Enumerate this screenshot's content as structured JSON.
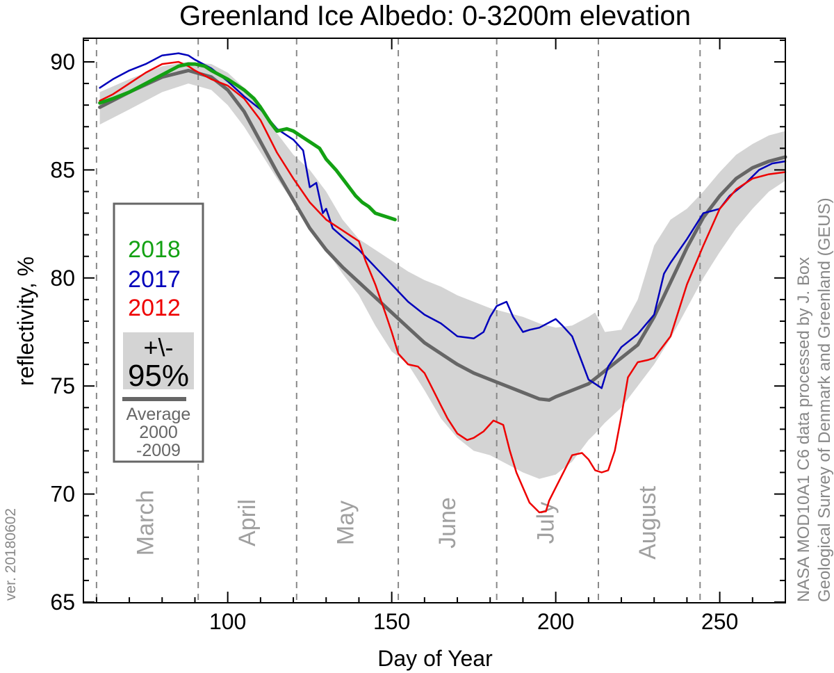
{
  "chart_data": {
    "type": "line",
    "title": "Greenland Ice Albedo: 0-3200m elevation",
    "xlabel": "Day of Year",
    "ylabel": "reflectivity, %",
    "xlim": [
      56,
      270
    ],
    "ylim": [
      65,
      91.5
    ],
    "x_ticks": [
      100,
      150,
      200,
      250
    ],
    "y_ticks": [
      65,
      70,
      75,
      80,
      85,
      90
    ],
    "grid": "vertical dashed month boundaries",
    "month_boundaries": [
      60,
      91,
      121,
      152,
      182,
      213,
      244
    ],
    "months": [
      {
        "label": "March",
        "day": 75
      },
      {
        "label": "April",
        "day": 106
      },
      {
        "label": "May",
        "day": 136
      },
      {
        "label": "June",
        "day": 167
      },
      {
        "label": "July",
        "day": 197
      },
      {
        "label": "August",
        "day": 228
      }
    ],
    "version": "ver. 20180602",
    "credit_lines": [
      "NASA MOD10A1 C6 data processed by J. Box",
      "Geological Survey of Denmark and Greenland (GEUS)"
    ],
    "legend": {
      "placement": "left",
      "entries": [
        {
          "label": "2018",
          "color": "#13a113"
        },
        {
          "label": "2017",
          "color": "#0000bb"
        },
        {
          "label": "2012",
          "color": "#ee0000"
        }
      ],
      "band_label_top": "+\\-",
      "band_label_bottom": "95%",
      "average_label": [
        "Average",
        "2000",
        "-2009"
      ]
    },
    "colors": {
      "series_2018": "#13a113",
      "series_2017": "#0000bb",
      "series_2012": "#ee0000",
      "average": "#666666",
      "band": "#d4d4d4",
      "month_text": "#a0a0a0"
    },
    "band": {
      "name": "+\\- 95%",
      "x": [
        61,
        70,
        80,
        88,
        95,
        100,
        105,
        110,
        115,
        120,
        125,
        130,
        135,
        140,
        145,
        150,
        155,
        160,
        165,
        170,
        175,
        180,
        185,
        190,
        195,
        200,
        205,
        210,
        212,
        215,
        220,
        225,
        230,
        235,
        240,
        245,
        250,
        255,
        260,
        265,
        270
      ],
      "upper": [
        88.6,
        89.2,
        89.8,
        90.0,
        89.9,
        89.5,
        88.8,
        87.8,
        86.7,
        85.7,
        85.0,
        84.0,
        82.7,
        81.8,
        81.3,
        80.8,
        80.3,
        79.9,
        79.6,
        79.2,
        78.9,
        78.6,
        78.4,
        78.2,
        77.9,
        77.7,
        77.8,
        78.2,
        78.4,
        77.5,
        77.6,
        79.0,
        81.5,
        82.7,
        83.2,
        84.0,
        84.9,
        85.7,
        86.2,
        86.6,
        86.8
      ],
      "lower": [
        87.1,
        87.8,
        88.6,
        89.0,
        88.7,
        88.0,
        87.0,
        85.8,
        84.6,
        83.5,
        82.4,
        81.3,
        80.2,
        79.2,
        77.8,
        76.6,
        76.0,
        74.8,
        73.5,
        72.6,
        72.0,
        71.8,
        71.4,
        71.0,
        70.7,
        70.9,
        71.5,
        72.5,
        72.8,
        73.3,
        74.0,
        75.0,
        76.0,
        77.2,
        78.6,
        80.0,
        81.2,
        82.3,
        83.2,
        84.0,
        84.5
      ]
    },
    "series": [
      {
        "name": "Average 2000-2009",
        "color": "#666666",
        "width": 5,
        "x": [
          61,
          70,
          80,
          88,
          95,
          100,
          105,
          110,
          115,
          120,
          125,
          130,
          135,
          140,
          145,
          150,
          155,
          160,
          165,
          170,
          175,
          180,
          185,
          190,
          195,
          198,
          200,
          205,
          210,
          215,
          220,
          225,
          230,
          235,
          240,
          245,
          250,
          255,
          260,
          265,
          270
        ],
        "y": [
          87.9,
          88.6,
          89.3,
          89.6,
          89.3,
          88.7,
          87.7,
          86.3,
          84.9,
          83.6,
          82.3,
          81.3,
          80.5,
          79.8,
          79.1,
          78.4,
          77.7,
          77.0,
          76.5,
          76.0,
          75.6,
          75.3,
          75.0,
          74.7,
          74.4,
          74.35,
          74.5,
          74.8,
          75.1,
          75.7,
          76.3,
          76.9,
          78.2,
          79.8,
          81.4,
          82.8,
          83.8,
          84.6,
          85.1,
          85.4,
          85.6
        ]
      },
      {
        "name": "2017",
        "color": "#0000bb",
        "width": 2.5,
        "x": [
          61,
          65,
          70,
          75,
          80,
          85,
          88,
          90,
          95,
          100,
          105,
          110,
          115,
          118,
          120,
          123,
          125,
          127,
          129,
          130,
          132,
          135,
          140,
          145,
          150,
          155,
          160,
          165,
          170,
          175,
          178,
          180,
          182,
          185,
          187,
          190,
          192,
          195,
          200,
          202,
          205,
          208,
          210,
          212,
          214,
          216,
          220,
          225,
          230,
          233,
          235,
          240,
          245,
          250,
          253,
          258,
          262,
          266,
          270
        ],
        "y": [
          88.8,
          89.2,
          89.6,
          89.9,
          90.3,
          90.4,
          90.3,
          90.1,
          89.7,
          89.1,
          88.4,
          87.8,
          86.9,
          86.6,
          86.4,
          85.9,
          84.2,
          84.4,
          83.0,
          83.2,
          82.3,
          81.9,
          81.3,
          80.5,
          79.7,
          78.9,
          78.3,
          77.9,
          77.3,
          77.2,
          77.5,
          78.2,
          78.7,
          78.9,
          78.2,
          77.5,
          77.6,
          77.7,
          78.1,
          77.8,
          77.3,
          76.1,
          75.3,
          75.1,
          74.9,
          75.9,
          76.8,
          77.4,
          78.3,
          80.2,
          80.7,
          81.8,
          83.0,
          83.2,
          83.8,
          84.4,
          85.0,
          85.3,
          85.4
        ]
      },
      {
        "name": "2012",
        "color": "#ee0000",
        "width": 2.5,
        "x": [
          61,
          65,
          70,
          75,
          80,
          85,
          88,
          90,
          95,
          100,
          105,
          110,
          115,
          120,
          125,
          130,
          135,
          140,
          142,
          145,
          148,
          150,
          152,
          155,
          158,
          160,
          162,
          165,
          167,
          170,
          173,
          175,
          178,
          181,
          184,
          186,
          188,
          190,
          192,
          195,
          197,
          198,
          200,
          203,
          205,
          208,
          210,
          212,
          214,
          216,
          218,
          220,
          222,
          225,
          228,
          230,
          235,
          240,
          245,
          250,
          255,
          260,
          265,
          270
        ],
        "y": [
          88.2,
          88.5,
          89.0,
          89.5,
          89.9,
          90.0,
          89.8,
          89.6,
          89.2,
          88.9,
          88.3,
          87.3,
          85.8,
          84.6,
          83.5,
          82.7,
          82.2,
          81.7,
          80.8,
          79.7,
          78.4,
          77.5,
          76.5,
          76.0,
          75.9,
          75.6,
          75.0,
          74.1,
          73.5,
          72.8,
          72.5,
          72.6,
          72.9,
          73.4,
          73.2,
          72.0,
          71.0,
          70.3,
          69.6,
          69.15,
          69.2,
          69.7,
          70.3,
          71.2,
          71.8,
          71.9,
          71.6,
          71.1,
          71.0,
          71.1,
          72.0,
          73.6,
          75.4,
          76.1,
          76.2,
          76.3,
          77.3,
          79.7,
          81.5,
          83.2,
          84.1,
          84.6,
          84.8,
          84.9
        ]
      },
      {
        "name": "2018",
        "color": "#13a113",
        "width": 5,
        "x": [
          61,
          65,
          70,
          75,
          80,
          85,
          88,
          90,
          93,
          95,
          100,
          103,
          105,
          108,
          110,
          113,
          115,
          118,
          120,
          123,
          125,
          128,
          130,
          133,
          135,
          137,
          139,
          141,
          143,
          145,
          147,
          149,
          151
        ],
        "y": [
          88.1,
          88.3,
          88.6,
          89.0,
          89.4,
          89.8,
          89.9,
          89.9,
          89.8,
          89.6,
          89.2,
          88.9,
          88.7,
          88.3,
          87.9,
          87.2,
          86.8,
          86.9,
          86.8,
          86.5,
          86.3,
          86.0,
          85.5,
          85.0,
          84.6,
          84.2,
          83.8,
          83.5,
          83.3,
          83.0,
          82.9,
          82.8,
          82.7
        ]
      }
    ]
  }
}
